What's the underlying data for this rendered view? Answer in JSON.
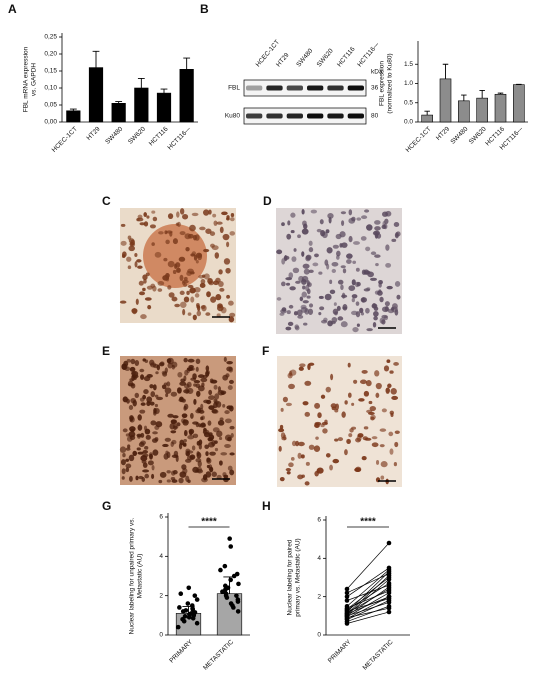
{
  "chart_data": [
    {
      "type": "bar",
      "panel": "A",
      "ylabel": [
        "FBL mRNA expression",
        "vs. GAPDH"
      ],
      "categories": [
        "HCEC-1CT",
        "HT29",
        "SW480",
        "SW620",
        "HCT116",
        "HCT116-–"
      ],
      "values": [
        0.033,
        0.16,
        0.055,
        0.1,
        0.085,
        0.155
      ],
      "errors": [
        0.005,
        0.048,
        0.005,
        0.028,
        0.012,
        0.033
      ],
      "color": "#000000",
      "ylim": [
        0,
        0.25
      ],
      "yticks": [
        {
          "value": 0,
          "label": "0,00"
        },
        {
          "value": 0.05,
          "label": "0,05"
        },
        {
          "value": 0.1,
          "label": "0,10"
        },
        {
          "value": 0.15,
          "label": "0,15"
        },
        {
          "value": 0.2,
          "label": "0,20"
        },
        {
          "value": 0.25,
          "label": "0,25"
        }
      ]
    },
    {
      "type": "bar",
      "panel": "B",
      "ylabel": [
        "FBL expression",
        "(normalized to Ku80)"
      ],
      "categories": [
        "HCEC-1CT",
        "HT29",
        "SW480",
        "SW620",
        "HCT116",
        "HCT116-–"
      ],
      "values": [
        0.18,
        1.12,
        0.55,
        0.62,
        0.72,
        0.97
      ],
      "errors": [
        0.1,
        0.38,
        0.15,
        0.2,
        0.03,
        0.01
      ],
      "color": "#8c8c8c",
      "ylim": [
        0,
        2
      ],
      "yticks": [
        {
          "value": 0,
          "label": "0.0"
        },
        0.5,
        {
          "value": 1,
          "label": "1.0"
        },
        1.5
      ]
    },
    {
      "type": "bar",
      "panel": "G",
      "ylabel": [
        "Nuclear labeling for unpaired primary vs.",
        "Metastatic (AU)"
      ],
      "categories": [
        "PRIMARY",
        "METASTATIC"
      ],
      "values": [
        1.1,
        2.1
      ],
      "errors": [
        0.35,
        0.85
      ],
      "points": [
        [
          0.4,
          0.6,
          0.7,
          0.8,
          0.85,
          0.9,
          0.95,
          1.0,
          1.0,
          1.05,
          1.1,
          1.1,
          1.15,
          1.2,
          1.25,
          1.3,
          1.35,
          1.4,
          1.5,
          1.6,
          1.8,
          2.0,
          2.1,
          2.4
        ],
        [
          1.2,
          1.4,
          1.5,
          1.6,
          1.7,
          1.8,
          1.9,
          2.0,
          2.0,
          2.1,
          2.2,
          2.3,
          2.4,
          2.5,
          2.6,
          2.8,
          3.0,
          3.1,
          3.3,
          3.5,
          4.5,
          4.9
        ]
      ],
      "color": "#a6a6a6",
      "ylim": [
        0,
        6
      ],
      "yticks": [
        0,
        2,
        4,
        6
      ],
      "annotation": "****"
    },
    {
      "type": "paired",
      "panel": "H",
      "ylabel": [
        "Nuclear labeling for paired",
        "primary vs. Metastatic (AU)"
      ],
      "categories": [
        "PRIMARY",
        "METASTATIC"
      ],
      "pairs": [
        [
          0.6,
          1.2
        ],
        [
          0.7,
          1.5
        ],
        [
          0.8,
          1.8
        ],
        [
          0.85,
          2.0
        ],
        [
          0.9,
          1.4
        ],
        [
          0.95,
          2.2
        ],
        [
          1.0,
          2.5
        ],
        [
          1.0,
          1.7
        ],
        [
          1.05,
          2.9
        ],
        [
          1.1,
          3.1
        ],
        [
          1.1,
          2.0
        ],
        [
          1.15,
          2.4
        ],
        [
          1.2,
          3.3
        ],
        [
          1.25,
          1.9
        ],
        [
          1.3,
          2.7
        ],
        [
          1.35,
          3.0
        ],
        [
          1.4,
          2.3
        ],
        [
          1.5,
          3.4
        ],
        [
          1.8,
          2.6
        ],
        [
          2.0,
          3.5
        ],
        [
          2.2,
          3.2
        ],
        [
          2.4,
          4.8
        ]
      ],
      "ylim": [
        0,
        6
      ],
      "yticks": [
        0,
        2,
        4,
        6
      ],
      "annotation": "****"
    }
  ],
  "blot": {
    "lanes": [
      "HCEC-1CT",
      "HT29",
      "SW480",
      "SW620",
      "HCT116",
      "HCT116-–"
    ],
    "unit": "kDa",
    "rows": [
      {
        "label": "FBL",
        "size": "36"
      },
      {
        "label": "Ku80",
        "size": "80"
      }
    ]
  },
  "images": [
    {
      "panel": "C"
    },
    {
      "panel": "D"
    },
    {
      "panel": "E"
    },
    {
      "panel": "F"
    }
  ]
}
